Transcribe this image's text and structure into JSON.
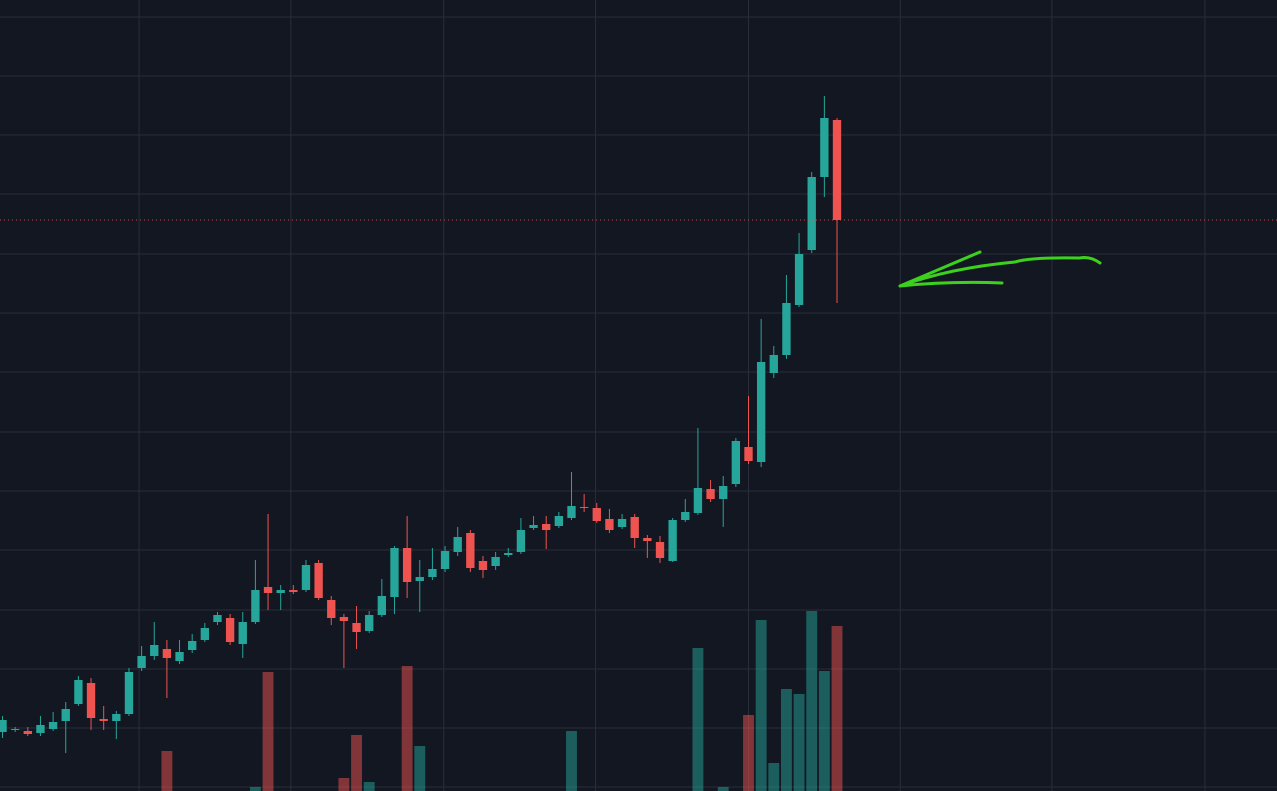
{
  "chart_data": {
    "type": "candlestick",
    "x": [
      0,
      1,
      2,
      3,
      4,
      5,
      6,
      7,
      8,
      9,
      10,
      11,
      12,
      13,
      14,
      15,
      16,
      17,
      18,
      19,
      20,
      21,
      22,
      23,
      24,
      25,
      26,
      27,
      28,
      29,
      30,
      31,
      32,
      33,
      34,
      35,
      36,
      37,
      38,
      39,
      40,
      41,
      42,
      43,
      44,
      45,
      46,
      47,
      48,
      49,
      50,
      51,
      52,
      53,
      54,
      55,
      56,
      57,
      58,
      59,
      60,
      61,
      62,
      63,
      64,
      65,
      66
    ],
    "open": [
      59,
      62,
      60,
      58,
      62,
      70,
      87,
      108,
      72,
      70,
      77,
      123,
      135,
      142,
      130,
      141,
      151,
      169,
      173,
      147,
      169,
      204,
      198,
      201,
      201,
      228,
      191,
      174,
      168,
      160,
      176,
      194,
      243,
      210,
      214,
      222,
      239,
      258,
      230,
      225,
      236,
      239,
      263,
      267,
      265,
      273,
      284,
      283,
      272,
      264,
      274,
      253,
      249,
      230,
      271,
      278,
      302,
      292,
      307,
      344,
      329,
      418,
      436,
      486,
      541,
      614,
      671
    ],
    "high": [
      75,
      64,
      64,
      75,
      79,
      89,
      115,
      113,
      85,
      80,
      123,
      145,
      169,
      151,
      151,
      157,
      168,
      179,
      177,
      179,
      231,
      277,
      206,
      206,
      231,
      231,
      195,
      177,
      185,
      180,
      212,
      245,
      275,
      231,
      243,
      245,
      264,
      261,
      235,
      239,
      243,
      273,
      275,
      275,
      279,
      319,
      297,
      288,
      282,
      277,
      277,
      256,
      255,
      273,
      292,
      363,
      311,
      315,
      353,
      395,
      472,
      445,
      516,
      558,
      619,
      695,
      673
    ],
    "low": [
      53,
      59,
      55,
      55,
      60,
      38,
      85,
      61,
      61,
      52,
      75,
      120,
      131,
      93,
      127,
      138,
      149,
      166,
      146,
      133,
      167,
      181,
      181,
      197,
      199,
      191,
      166,
      123,
      142,
      158,
      174,
      177,
      193,
      179,
      211,
      219,
      235,
      219,
      213,
      221,
      234,
      237,
      261,
      242,
      263,
      271,
      279,
      268,
      258,
      262,
      243,
      233,
      228,
      229,
      269,
      276,
      289,
      264,
      304,
      327,
      324,
      413,
      432,
      484,
      538,
      594,
      488
    ],
    "close": [
      71,
      62,
      57,
      66,
      69,
      82,
      111,
      73,
      70,
      77,
      119,
      135,
      146,
      133,
      139,
      150,
      163,
      176,
      149,
      169,
      201,
      198,
      201,
      199,
      226,
      193,
      173,
      170,
      159,
      176,
      195,
      243,
      209,
      214,
      222,
      240,
      254,
      223,
      221,
      234,
      238,
      261,
      266,
      261,
      275,
      285,
      283,
      270,
      261,
      272,
      253,
      250,
      233,
      271,
      279,
      303,
      292,
      305,
      350,
      330,
      429,
      436,
      488,
      537,
      614,
      673,
      571
    ],
    "volume": [
      0,
      0,
      0,
      0,
      0,
      0,
      0,
      0,
      0,
      0,
      0,
      0,
      0,
      40,
      0,
      0,
      0,
      0,
      0,
      0,
      4,
      119,
      0,
      0,
      0,
      0,
      0,
      13,
      56,
      9,
      0,
      0,
      125,
      45,
      0,
      0,
      0,
      0,
      0,
      0,
      0,
      0,
      0,
      0,
      0,
      60,
      0,
      0,
      0,
      0,
      0,
      0,
      0,
      0,
      0,
      143,
      0,
      4,
      0,
      76,
      171,
      28,
      102,
      97,
      180,
      120,
      165
    ],
    "up_color": "#26a69a",
    "down_color": "#ef5350",
    "xlim": [
      -0.2,
      100.8
    ],
    "xticks": [
      10.8,
      22.8,
      34.9,
      46.9,
      59,
      71,
      83,
      95.1
    ],
    "ylim": [
      0,
      791
    ],
    "yticks": [
      4,
      63,
      122,
      181,
      241,
      300,
      359,
      419,
      478,
      537,
      597,
      656,
      715,
      774
    ],
    "y2lim": [
      0,
      791
    ],
    "grid": true,
    "last_price_line": true
  }
}
